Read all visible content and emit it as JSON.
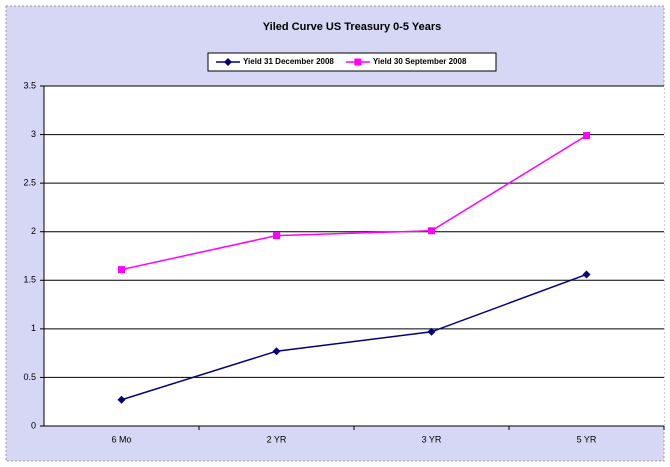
{
  "chart_data": {
    "type": "line",
    "title": "Yiled Curve US Treasury 0-5 Years",
    "categories": [
      "6 Mo",
      "2 YR",
      "3 YR",
      "5 YR"
    ],
    "series": [
      {
        "name": "Yield 31 December 2008",
        "color": "#000080",
        "marker": "diamond",
        "values": [
          0.27,
          0.77,
          0.97,
          1.56
        ]
      },
      {
        "name": "Yield 30 September 2008",
        "color": "#ff00ff",
        "marker": "square",
        "values": [
          1.61,
          1.96,
          2.01,
          2.99
        ]
      }
    ],
    "ylim": [
      0,
      3.5
    ],
    "yticks": [
      0,
      0.5,
      1,
      1.5,
      2,
      2.5,
      3,
      3.5
    ],
    "grid": true,
    "legend": "top"
  }
}
